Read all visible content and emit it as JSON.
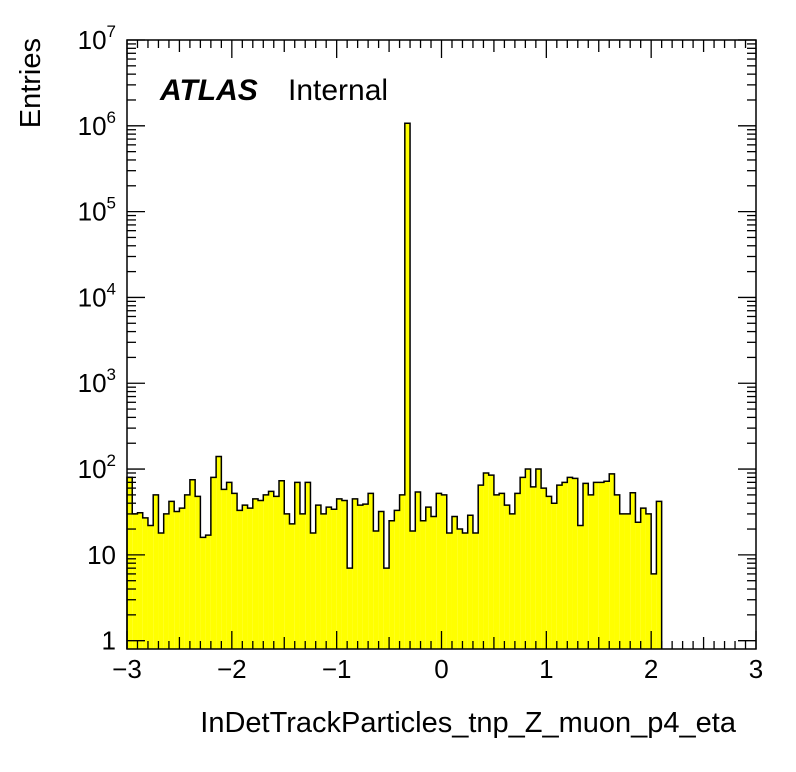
{
  "chart_data": {
    "type": "bar",
    "title": "",
    "xlabel": "InDetTrackParticles_tnp_Z_muon_p4_eta",
    "ylabel": "Entries",
    "label_atlas": "ATLAS",
    "label_status": "Internal",
    "xlim": [
      -3,
      3
    ],
    "ylim": [
      0.8,
      10000000
    ],
    "ylog": true,
    "grid": false,
    "fill_color": "#ffff00",
    "line_color": "#000000",
    "x_tick_labels": [
      "−3",
      "−2",
      "−1",
      "0",
      "1",
      "2",
      "3"
    ],
    "y_tick_labels": [
      {
        "base": "1",
        "exp": ""
      },
      {
        "base": "10",
        "exp": ""
      },
      {
        "base": "10",
        "exp": "2"
      },
      {
        "base": "10",
        "exp": "3"
      },
      {
        "base": "10",
        "exp": "4"
      },
      {
        "base": "10",
        "exp": "5"
      },
      {
        "base": "10",
        "exp": "6"
      },
      {
        "base": "10",
        "exp": "7"
      }
    ],
    "bin_width": 0.05,
    "values": [
      80,
      30,
      31,
      27,
      22,
      50,
      18,
      30,
      42,
      32,
      35,
      50,
      75,
      48,
      16,
      17,
      80,
      140,
      58,
      70,
      52,
      33,
      38,
      35,
      45,
      43,
      50,
      55,
      48,
      73,
      30,
      23,
      70,
      30,
      70,
      18,
      38,
      30,
      36,
      34,
      45,
      43,
      7,
      45,
      38,
      39,
      52,
      19,
      32,
      7,
      25,
      33,
      50,
      1070000,
      19,
      54,
      25,
      36,
      28,
      52,
      50,
      18,
      28,
      20,
      18,
      29,
      18,
      65,
      90,
      85,
      50,
      52,
      38,
      30,
      52,
      80,
      100,
      62,
      100,
      60,
      48,
      40,
      65,
      70,
      80,
      78,
      22,
      68,
      50,
      70,
      70,
      72,
      88,
      50,
      30,
      30,
      53,
      24,
      35,
      30,
      6,
      42
    ]
  }
}
